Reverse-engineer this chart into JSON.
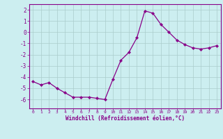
{
  "x": [
    0,
    1,
    2,
    3,
    4,
    5,
    6,
    7,
    8,
    9,
    10,
    11,
    12,
    13,
    14,
    15,
    16,
    17,
    18,
    19,
    20,
    21,
    22,
    23
  ],
  "y": [
    -4.4,
    -4.7,
    -4.5,
    -5.0,
    -5.4,
    -5.8,
    -5.8,
    -5.8,
    -5.9,
    -6.0,
    -4.2,
    -2.5,
    -1.8,
    -0.5,
    1.9,
    1.7,
    0.7,
    0.0,
    -0.7,
    -1.1,
    -1.4,
    -1.5,
    -1.4,
    -1.2
  ],
  "line_color": "#880088",
  "marker": "D",
  "marker_size": 2.2,
  "bg_color": "#cceef0",
  "grid_color": "#aacccc",
  "xlabel": "Windchill (Refroidissement éolien,°C)",
  "xlabel_color": "#880088",
  "tick_color": "#880088",
  "spine_color": "#880088",
  "xlim": [
    -0.5,
    23.5
  ],
  "ylim": [
    -6.8,
    2.5
  ],
  "xticks": [
    0,
    1,
    2,
    3,
    4,
    5,
    6,
    7,
    8,
    9,
    10,
    11,
    12,
    13,
    14,
    15,
    16,
    17,
    18,
    19,
    20,
    21,
    22,
    23
  ],
  "yticks": [
    -6,
    -5,
    -4,
    -3,
    -2,
    -1,
    0,
    1,
    2
  ],
  "figsize": [
    3.2,
    2.0
  ],
  "dpi": 100
}
